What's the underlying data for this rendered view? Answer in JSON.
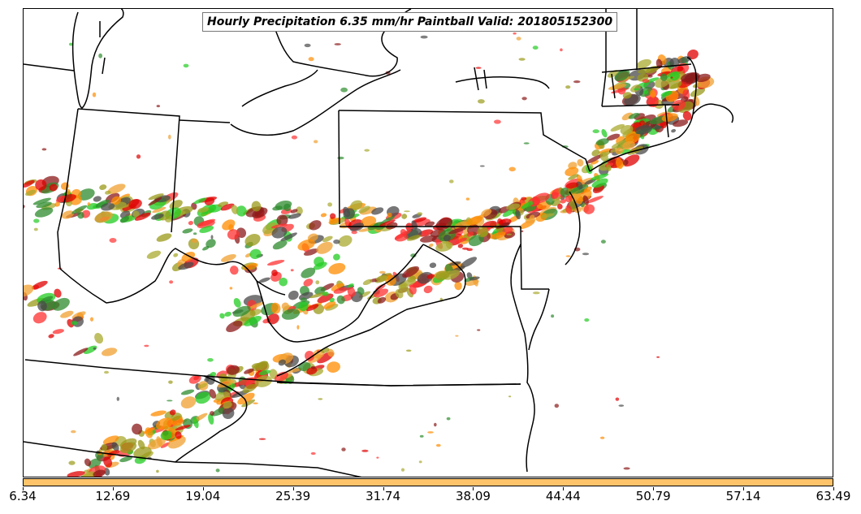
{
  "title": "Hourly Precipitation 6.35 mm/hr Paintball Valid: 201805152300",
  "colorbar": {
    "color": "#ffc46a",
    "ticks": [
      "6.34",
      "12.69",
      "19.04",
      "25.39",
      "31.74",
      "38.09",
      "44.44",
      "50.79",
      "57.14",
      "63.49"
    ]
  },
  "member_colors": [
    "#e00000",
    "#ff8c00",
    "#22cc22",
    "#8b1a1a",
    "#9a9a1a",
    "#4a4a4a",
    "#2e8b2e",
    "#f0a030",
    "#ff3030",
    "#aaaa30"
  ]
}
